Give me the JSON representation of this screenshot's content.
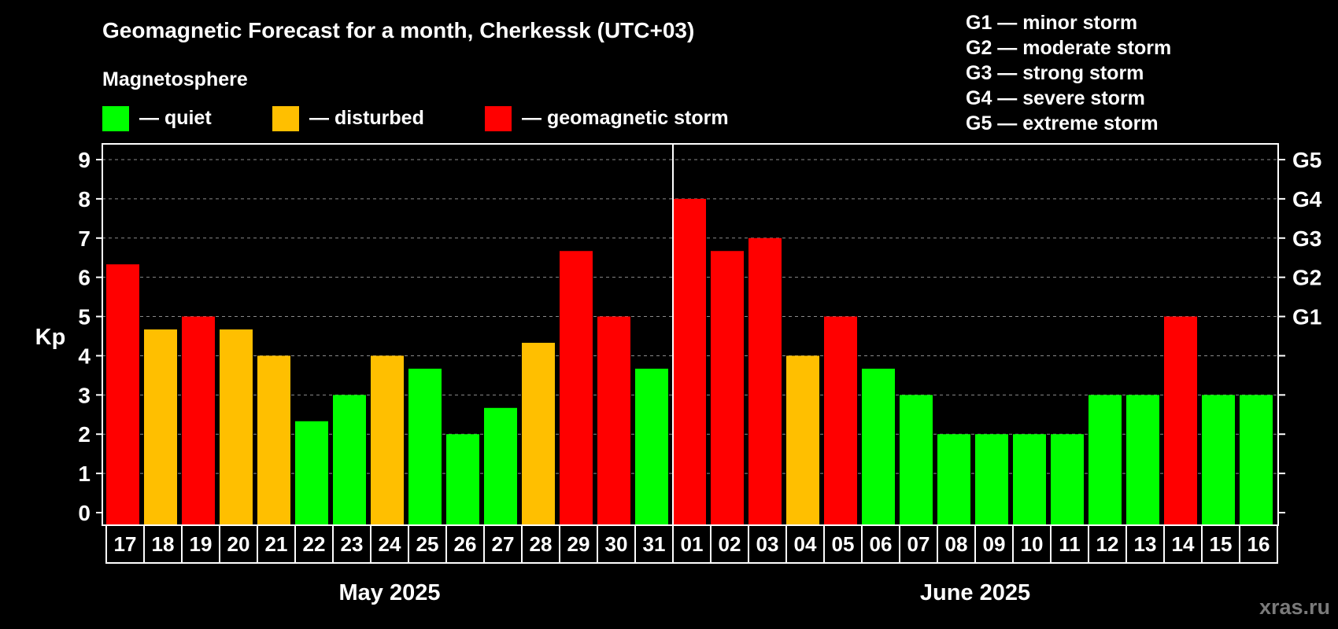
{
  "chart_data": {
    "type": "bar",
    "title": "Geomagnetic Forecast for a month, Cherkessk (UTC+03)",
    "legend_heading": "Magnetosphere",
    "legend": [
      {
        "key": "quiet",
        "label": "— quiet",
        "color": "#00ff00"
      },
      {
        "key": "disturbed",
        "label": "— disturbed",
        "color": "#ffbf00"
      },
      {
        "key": "storm",
        "label": "— geomagnetic storm",
        "color": "#ff0000"
      }
    ],
    "storm_levels": [
      {
        "label": "G1 — minor storm"
      },
      {
        "label": "G2 — moderate storm"
      },
      {
        "label": "G3 — strong storm"
      },
      {
        "label": "G4 — severe storm"
      },
      {
        "label": "G5 — extreme storm"
      }
    ],
    "ylabel": "Kp",
    "ylim": [
      0,
      9
    ],
    "yticks": [
      0,
      1,
      2,
      3,
      4,
      5,
      6,
      7,
      8,
      9
    ],
    "right_axis_ticks": [
      {
        "value": 5,
        "label": "G1"
      },
      {
        "value": 6,
        "label": "G2"
      },
      {
        "value": 7,
        "label": "G3"
      },
      {
        "value": 8,
        "label": "G4"
      },
      {
        "value": 9,
        "label": "G5"
      }
    ],
    "grid": true,
    "months": [
      {
        "label": "May 2025",
        "first_index": 0,
        "last_index": 14
      },
      {
        "label": "June 2025",
        "first_index": 15,
        "last_index": 30
      }
    ],
    "categories": [
      "17",
      "18",
      "19",
      "20",
      "21",
      "22",
      "23",
      "24",
      "25",
      "26",
      "27",
      "28",
      "29",
      "30",
      "31",
      "01",
      "02",
      "03",
      "04",
      "05",
      "06",
      "07",
      "08",
      "09",
      "10",
      "11",
      "12",
      "13",
      "14",
      "15",
      "16"
    ],
    "values": [
      6.33,
      4.67,
      5,
      4.67,
      4,
      2.33,
      3,
      4,
      3.67,
      2,
      2.67,
      4.33,
      6.67,
      5,
      3.67,
      8,
      6.67,
      7,
      4,
      5,
      3.67,
      3,
      2,
      2,
      2,
      2,
      3,
      3,
      5,
      3,
      3
    ],
    "levels": [
      "storm",
      "disturbed",
      "storm",
      "disturbed",
      "disturbed",
      "quiet",
      "quiet",
      "disturbed",
      "quiet",
      "quiet",
      "quiet",
      "disturbed",
      "storm",
      "storm",
      "quiet",
      "storm",
      "storm",
      "storm",
      "disturbed",
      "storm",
      "quiet",
      "quiet",
      "quiet",
      "quiet",
      "quiet",
      "quiet",
      "quiet",
      "quiet",
      "storm",
      "quiet",
      "quiet"
    ]
  },
  "watermark": "xras.ru"
}
